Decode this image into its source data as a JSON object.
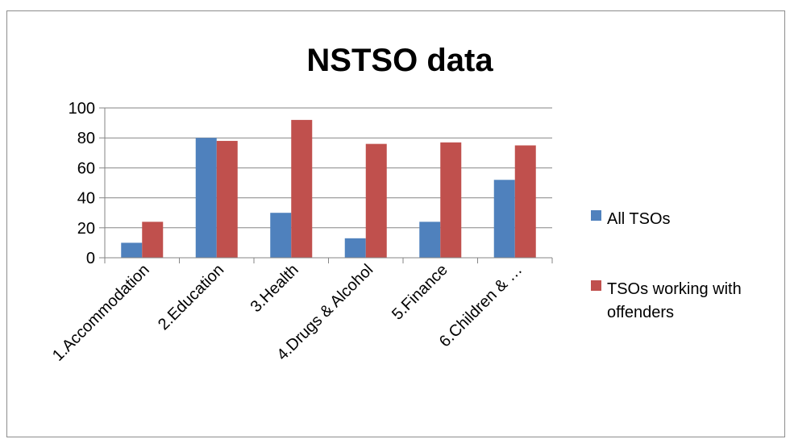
{
  "chart_data": {
    "type": "bar",
    "title": "NSTSO data",
    "categories": [
      "1.Accommodation",
      "2.Education",
      "3.Health",
      "4.Drugs & Alcohol",
      "5.Finance",
      "6.Children & …"
    ],
    "series": [
      {
        "name": "All TSOs",
        "values": [
          10,
          80,
          30,
          13,
          24,
          52
        ],
        "color": "#4f81bd"
      },
      {
        "name": "TSOs working with offenders",
        "values": [
          24,
          78,
          92,
          76,
          77,
          75
        ],
        "color": "#c0504d"
      }
    ],
    "legend_lines": [
      [
        "All TSOs"
      ],
      [
        "TSOs working with",
        "offenders"
      ]
    ],
    "ylim": [
      0,
      100
    ],
    "yticks": [
      0,
      20,
      40,
      60,
      80,
      100
    ],
    "grid": true,
    "legend_position": "right"
  }
}
